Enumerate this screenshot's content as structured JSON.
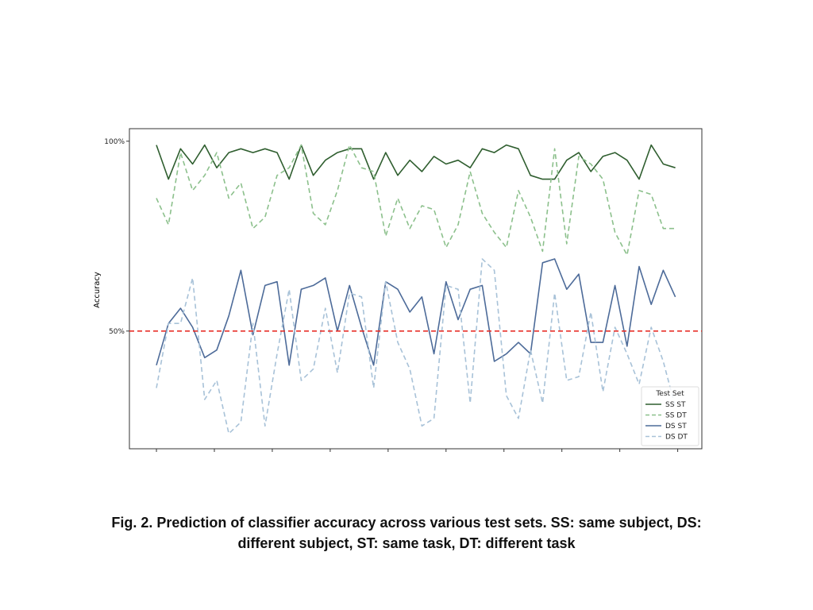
{
  "chart_data": {
    "type": "line",
    "ylabel": "Accuracy",
    "caption": [
      "Fig. 2. Prediction of classifier accuracy across various test sets. SS: same subject, DS:",
      "different subject, ST: same task, DT: different task"
    ],
    "legend_title": "Test Set",
    "legend": "lower right",
    "x": [
      0,
      1,
      2,
      3,
      4,
      5,
      6,
      7,
      8,
      9,
      10,
      11,
      12,
      13,
      14,
      15,
      16,
      17,
      18,
      19,
      20,
      21,
      22,
      23,
      24,
      25,
      26,
      27,
      28,
      29,
      30,
      31,
      32,
      33,
      34,
      35,
      36,
      37,
      38,
      39,
      40,
      41,
      42,
      43
    ],
    "xlim": [
      -2.24,
      45.2
    ],
    "xticks": [
      0,
      4.8,
      9.6,
      14.4,
      19.2,
      24,
      28.8,
      33.6,
      38.4,
      43.2
    ],
    "ylim": [
      19,
      103.3
    ],
    "yticks": [
      {
        "value": 50,
        "label": "50%"
      },
      {
        "value": 100,
        "label": "100%"
      }
    ],
    "hline": {
      "value": 50,
      "color": "#e8302a"
    },
    "series": [
      {
        "name": "SS ST",
        "color": "#2f5e2f",
        "dashed": false,
        "values": [
          99,
          90,
          98,
          94,
          99,
          93,
          97,
          98,
          97,
          98,
          97,
          90,
          99,
          91,
          95,
          97,
          98,
          98,
          90,
          97,
          91,
          95,
          92,
          96,
          94,
          95,
          93,
          98,
          97,
          99,
          98,
          91,
          90,
          90,
          95,
          97,
          92,
          96,
          97,
          95,
          90,
          99,
          94,
          93
        ]
      },
      {
        "name": "SS DT",
        "color": "#8cc08c",
        "dashed": true,
        "values": [
          85,
          78,
          97,
          87,
          91,
          97,
          85,
          89,
          77,
          80,
          91,
          93,
          99,
          81,
          78,
          87,
          99,
          93,
          92,
          75,
          85,
          77,
          83,
          82,
          72,
          78,
          92,
          81,
          76,
          72,
          87,
          80,
          71,
          98,
          73,
          96,
          94,
          90,
          76,
          70,
          87,
          86,
          77,
          77
        ]
      },
      {
        "name": "DS ST",
        "color": "#4d6b99",
        "dashed": false,
        "values": [
          41,
          52,
          56,
          51,
          43,
          45,
          54,
          66,
          49,
          62,
          63,
          41,
          61,
          62,
          64,
          50,
          62,
          51,
          41,
          63,
          61,
          55,
          59,
          44,
          63,
          53,
          61,
          62,
          42,
          44,
          47,
          44,
          68,
          69,
          61,
          65,
          47,
          47,
          62,
          46,
          67,
          57,
          66,
          59
        ]
      },
      {
        "name": "DS DT",
        "color": "#a8c2d8",
        "dashed": true,
        "values": [
          35,
          52,
          52,
          64,
          32,
          37,
          23,
          26,
          52,
          25,
          44,
          61,
          37,
          40,
          56,
          39,
          60,
          59,
          35,
          63,
          47,
          40,
          25,
          27,
          62,
          61,
          31,
          69,
          66,
          33,
          27,
          45,
          31,
          60,
          37,
          38,
          55,
          34,
          51,
          44,
          36,
          51,
          42,
          30
        ]
      }
    ]
  }
}
